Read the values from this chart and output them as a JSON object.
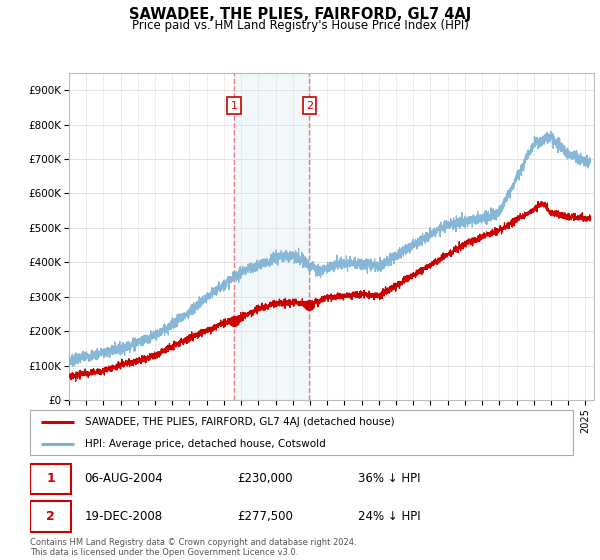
{
  "title": "SAWADEE, THE PLIES, FAIRFORD, GL7 4AJ",
  "subtitle": "Price paid vs. HM Land Registry's House Price Index (HPI)",
  "background_color": "#ffffff",
  "grid_color": "#dddddd",
  "ylim": [
    0,
    950000
  ],
  "yticks": [
    0,
    100000,
    200000,
    300000,
    400000,
    500000,
    600000,
    700000,
    800000,
    900000
  ],
  "ytick_labels": [
    "£0",
    "£100K",
    "£200K",
    "£300K",
    "£400K",
    "£500K",
    "£600K",
    "£700K",
    "£800K",
    "£900K"
  ],
  "sale1_x": 2004.58,
  "sale1_y": 230000,
  "sale1_label": "1",
  "sale2_x": 2008.97,
  "sale2_y": 277500,
  "sale2_label": "2",
  "shade_x1": 2004.58,
  "shade_x2": 2008.97,
  "hpi_color": "#7ab0d4",
  "price_color": "#cc0000",
  "dashed_color": "#e88080",
  "legend_entry1": "SAWADEE, THE PLIES, FAIRFORD, GL7 4AJ (detached house)",
  "legend_entry2": "HPI: Average price, detached house, Cotswold",
  "table_row1": [
    "1",
    "06-AUG-2004",
    "£230,000",
    "36% ↓ HPI"
  ],
  "table_row2": [
    "2",
    "19-DEC-2008",
    "£277,500",
    "24% ↓ HPI"
  ],
  "footnote": "Contains HM Land Registry data © Crown copyright and database right 2024.\nThis data is licensed under the Open Government Licence v3.0.",
  "xmin": 1995,
  "xmax": 2025.5
}
